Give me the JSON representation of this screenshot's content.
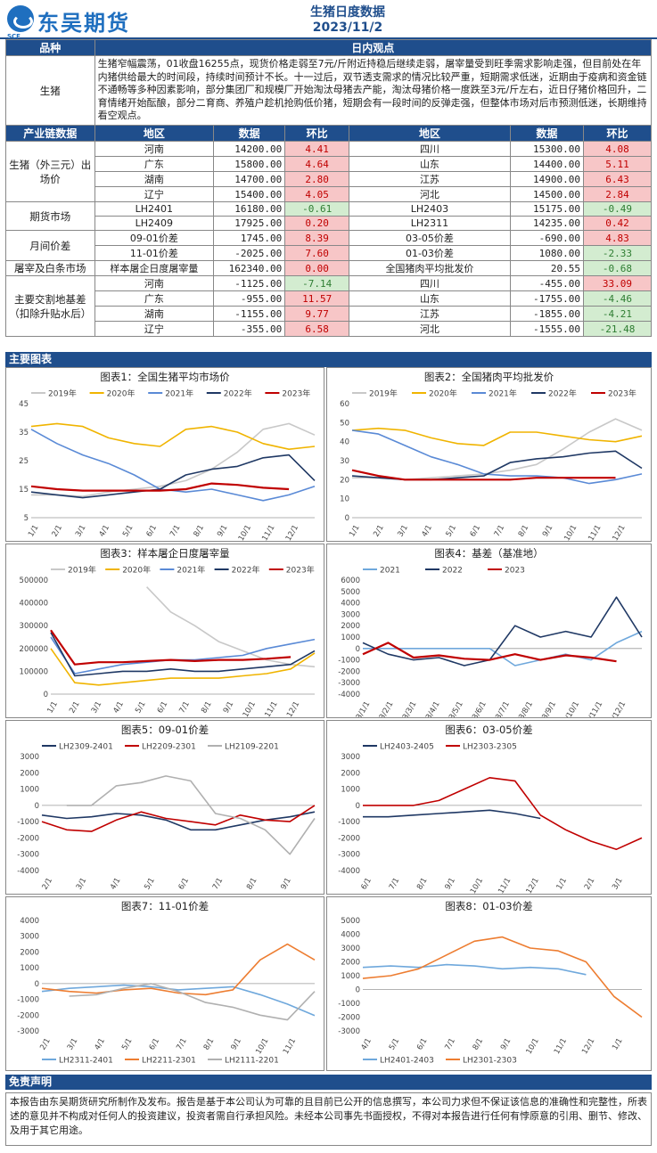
{
  "header": {
    "logo_cn": "东吴期货",
    "logo_en": "SCF",
    "title": "生猪日度数据",
    "date": "2023/11/2"
  },
  "section1": {
    "col_product": "品种",
    "col_view": "日内观点",
    "product": "生猪",
    "view_text": "生猪窄幅震荡，01收盘16255点，现货价格走弱至7元/斤附近持稳后继续走弱，屠宰量受到旺季需求影响走强，但目前处在年内猪供给最大的时间段，持续时间预计不长。十一过后，双节透支需求的情况比较严重，短期需求低迷，近期由于疫病和资金链不通畅等多种因素影响，部分集团厂和规模厂开始淘汰母猪去产能，淘汰母猪价格一度跌至3元/斤左右，近日仔猪价格回升，二育情绪开始酝酿，部分二育商、养殖户趁机抢购低价猪，短期会有一段时间的反弹走强，但整体市场对后市预测低迷，长期维持看空观点。"
  },
  "data_table": {
    "headers": [
      "产业链数据",
      "地区",
      "数据",
      "环比",
      "地区",
      "数据",
      "环比"
    ],
    "groups": [
      {
        "label": "生猪（外三元）出场价",
        "rows": [
          [
            "河南",
            "14200.00",
            "4.41",
            "四川",
            "15300.00",
            "4.08"
          ],
          [
            "广东",
            "15800.00",
            "4.64",
            "山东",
            "14400.00",
            "5.11"
          ],
          [
            "湖南",
            "14700.00",
            "2.80",
            "江苏",
            "14900.00",
            "6.43"
          ],
          [
            "辽宁",
            "15400.00",
            "4.05",
            "河北",
            "14500.00",
            "2.84"
          ]
        ]
      },
      {
        "label": "期货市场",
        "rows": [
          [
            "LH2401",
            "16180.00",
            "-0.61",
            "LH2403",
            "15175.00",
            "-0.49"
          ],
          [
            "LH2409",
            "17925.00",
            "0.20",
            "LH2311",
            "14235.00",
            "0.42"
          ]
        ]
      },
      {
        "label": "月间价差",
        "rows": [
          [
            "09-01价差",
            "1745.00",
            "8.39",
            "03-05价差",
            "-690.00",
            "4.83"
          ],
          [
            "11-01价差",
            "-2025.00",
            "7.60",
            "01-03价差",
            "1080.00",
            "-2.33"
          ]
        ]
      },
      {
        "label": "屠宰及白条市场",
        "rows": [
          [
            "样本屠企日度屠宰量",
            "162340.00",
            "0.00",
            "全国猪肉平均批发价",
            "20.55",
            "-0.68"
          ]
        ]
      },
      {
        "label": "主要交割地基差（扣除升贴水后）",
        "rows": [
          [
            "河南",
            "-1125.00",
            "-7.14",
            "四川",
            "-455.00",
            "33.09"
          ],
          [
            "广东",
            "-955.00",
            "11.57",
            "山东",
            "-1755.00",
            "-4.46"
          ],
          [
            "湖南",
            "-1155.00",
            "9.77",
            "江苏",
            "-1855.00",
            "-4.21"
          ],
          [
            "辽宁",
            "-355.00",
            "6.58",
            "河北",
            "-1555.00",
            "-21.48"
          ]
        ]
      }
    ]
  },
  "charts_section": {
    "title": "主要图表"
  },
  "colors": {
    "y2019": "#4472c4",
    "y2020": "#f0b400",
    "y2021": "#5a8ad6",
    "y2022": "#1f3864",
    "y2023": "#c00000",
    "grey": "#b0b0b0",
    "orange": "#ed7d31",
    "lightblue": "#6fa8dc"
  },
  "chart_data": [
    {
      "title": "图表1：全国生猪平均市场价",
      "type": "line",
      "ylim": [
        5,
        45
      ],
      "yticks": [
        5,
        15,
        25,
        35,
        45
      ],
      "xticks": [
        "1/1",
        "2/1",
        "3/1",
        "4/1",
        "5/1",
        "6/1",
        "7/1",
        "8/1",
        "9/1",
        "10/1",
        "11/1",
        "12/1"
      ],
      "series": [
        {
          "name": "2019年",
          "color": "#c8c8c8",
          "values": [
            13,
            13,
            12.5,
            14,
            15,
            16,
            18,
            22,
            28,
            36,
            38,
            34
          ]
        },
        {
          "name": "2020年",
          "color": "#f0b400",
          "values": [
            37,
            38,
            37,
            33,
            31,
            30,
            36,
            37,
            35,
            31,
            29,
            30
          ]
        },
        {
          "name": "2021年",
          "color": "#5a8ad6",
          "values": [
            36,
            31,
            27,
            24,
            20,
            15,
            14,
            15,
            13,
            11,
            13,
            16
          ]
        },
        {
          "name": "2022年",
          "color": "#1f3864",
          "values": [
            14,
            13,
            12,
            13,
            14,
            15,
            20,
            22,
            23,
            26,
            27,
            18
          ]
        },
        {
          "name": "2023年",
          "color": "#c00000",
          "values": [
            16,
            15,
            14.5,
            14.5,
            14.5,
            14.5,
            15,
            17,
            16.5,
            15.5,
            15
          ]
        }
      ]
    },
    {
      "title": "图表2：全国猪肉平均批发价",
      "type": "line",
      "ylim": [
        0,
        60
      ],
      "yticks": [
        0,
        10,
        20,
        30,
        40,
        50,
        60
      ],
      "xticks": [
        "1/1",
        "2/1",
        "3/1",
        "4/1",
        "5/1",
        "6/1",
        "7/1",
        "8/1",
        "9/1",
        "10/1",
        "11/1",
        "12/1"
      ],
      "series": [
        {
          "name": "2019年",
          "color": "#c8c8c8",
          "values": [
            21,
            21,
            20,
            21,
            22,
            23,
            25,
            28,
            36,
            45,
            52,
            46
          ]
        },
        {
          "name": "2020年",
          "color": "#f0b400",
          "values": [
            46,
            47,
            46,
            42,
            39,
            38,
            45,
            45,
            43,
            41,
            40,
            43
          ]
        },
        {
          "name": "2021年",
          "color": "#5a8ad6",
          "values": [
            46,
            44,
            38,
            32,
            28,
            23,
            22,
            22,
            21,
            18,
            20,
            23
          ]
        },
        {
          "name": "2022年",
          "color": "#1f3864",
          "values": [
            22,
            21,
            20,
            20,
            21,
            22,
            29,
            31,
            32,
            34,
            35,
            26
          ]
        },
        {
          "name": "2023年",
          "color": "#c00000",
          "values": [
            25,
            22,
            20,
            20,
            20,
            20,
            20,
            21,
            21,
            21,
            21
          ]
        }
      ]
    },
    {
      "title": "图表3：样本屠企日度屠宰量",
      "type": "line",
      "ylim": [
        0,
        500000
      ],
      "yticks": [
        0,
        100000,
        200000,
        300000,
        400000,
        500000
      ],
      "xticks": [
        "1/1",
        "2/1",
        "3/1",
        "4/1",
        "5/1",
        "6/1",
        "7/1",
        "8/1",
        "9/1",
        "10/1",
        "11/1",
        "12/1"
      ],
      "series": [
        {
          "name": "2019年",
          "color": "#c8c8c8",
          "values": [
            null,
            null,
            null,
            null,
            470000,
            360000,
            300000,
            230000,
            190000,
            150000,
            130000,
            120000
          ]
        },
        {
          "name": "2020年",
          "color": "#f0b400",
          "values": [
            200000,
            50000,
            40000,
            50000,
            60000,
            70000,
            70000,
            70000,
            80000,
            90000,
            110000,
            180000
          ]
        },
        {
          "name": "2021年",
          "color": "#5a8ad6",
          "values": [
            250000,
            90000,
            110000,
            130000,
            140000,
            150000,
            150000,
            160000,
            170000,
            200000,
            220000,
            240000
          ]
        },
        {
          "name": "2022年",
          "color": "#1f3864",
          "values": [
            270000,
            80000,
            90000,
            100000,
            100000,
            110000,
            100000,
            100000,
            110000,
            120000,
            130000,
            190000
          ]
        },
        {
          "name": "2023年",
          "color": "#c00000",
          "values": [
            280000,
            130000,
            140000,
            140000,
            145000,
            150000,
            145000,
            150000,
            150000,
            155000,
            162340
          ]
        }
      ]
    },
    {
      "title": "图表4：基差（基准地）",
      "type": "line",
      "ylim": [
        -4000,
        6000
      ],
      "yticks": [
        -4000,
        -3000,
        -2000,
        -1000,
        0,
        1000,
        2000,
        3000,
        4000,
        5000,
        6000
      ],
      "xticks": [
        "2023/1/1",
        "2023/2/1",
        "2023/3/1",
        "2023/4/1",
        "2023/5/1",
        "2023/6/1",
        "2023/7/1",
        "2023/8/1",
        "2023/9/1",
        "2023/10/1",
        "2023/11/1",
        "2023/12/1"
      ],
      "series": [
        {
          "name": "2021",
          "color": "#6fa8dc",
          "values": [
            0,
            0,
            0,
            0,
            0,
            0,
            -1500,
            -1000,
            -500,
            -1000,
            500,
            1500
          ]
        },
        {
          "name": "2022",
          "color": "#1f3864",
          "values": [
            500,
            -500,
            -1000,
            -800,
            -1500,
            -1000,
            2000,
            1000,
            1500,
            1000,
            4500,
            1000
          ]
        },
        {
          "name": "2023",
          "color": "#c00000",
          "values": [
            -500,
            500,
            -800,
            -600,
            -900,
            -1000,
            -500,
            -1000,
            -600,
            -800,
            -1125
          ]
        }
      ]
    },
    {
      "title": "图表5：09-01价差",
      "type": "line",
      "ylim": [
        -4000,
        3000
      ],
      "yticks": [
        -4000,
        -3000,
        -2000,
        -1000,
        0,
        1000,
        2000,
        3000
      ],
      "xticks": [
        "2/1",
        "3/1",
        "4/1",
        "5/1",
        "6/1",
        "7/1",
        "8/1",
        "9/1"
      ],
      "series": [
        {
          "name": "LH2309-2401",
          "color": "#1f3864",
          "values": [
            -600,
            -800,
            -700,
            -500,
            -600,
            -900,
            -1500,
            -1500,
            -1200,
            -900,
            -700,
            -400
          ]
        },
        {
          "name": "LH2209-2301",
          "color": "#c00000",
          "values": [
            -1000,
            -1500,
            -1600,
            -900,
            -400,
            -800,
            -1000,
            -1200,
            -600,
            -900,
            -1000,
            0
          ]
        },
        {
          "name": "LH2109-2201",
          "color": "#b0b0b0",
          "values": [
            null,
            0,
            0,
            1200,
            1400,
            1800,
            1500,
            -500,
            -800,
            -1500,
            -3000,
            -800
          ]
        }
      ]
    },
    {
      "title": "图表6：03-05价差",
      "type": "line",
      "ylim": [
        -4000,
        3000
      ],
      "yticks": [
        -4000,
        -3000,
        -2000,
        -1000,
        0,
        1000,
        2000,
        3000
      ],
      "xticks": [
        "6/1",
        "7/1",
        "8/1",
        "9/1",
        "10/1",
        "11/1",
        "12/1",
        "1/1",
        "2/1",
        "3/1"
      ],
      "series": [
        {
          "name": "LH2403-2405",
          "color": "#1f3864",
          "values": [
            -700,
            -700,
            -600,
            -500,
            -400,
            -300,
            -500,
            -800,
            null,
            null,
            null
          ]
        },
        {
          "name": "LH2303-2305",
          "color": "#c00000",
          "values": [
            0,
            0,
            0,
            300,
            1000,
            1700,
            1500,
            -600,
            -1500,
            -2200,
            -2700,
            -2000
          ]
        }
      ]
    },
    {
      "title": "图表7：11-01价差",
      "type": "line",
      "ylim": [
        -3000,
        4000
      ],
      "yticks": [
        -3000,
        -2000,
        -1000,
        0,
        1000,
        2000,
        3000,
        4000
      ],
      "xticks": [
        "2/1",
        "3/1",
        "4/1",
        "5/1",
        "6/1",
        "7/1",
        "8/1",
        "9/1",
        "10/1",
        "11/1"
      ],
      "series": [
        {
          "name": "LH2311-2401",
          "color": "#6fa8dc",
          "values": [
            -500,
            -300,
            -200,
            -100,
            -200,
            -400,
            -300,
            -200,
            -700,
            -1300,
            -2025
          ]
        },
        {
          "name": "LH2211-2301",
          "color": "#ed7d31",
          "values": [
            -300,
            -500,
            -600,
            -400,
            -300,
            -600,
            -700,
            -400,
            1500,
            2500,
            1500
          ]
        },
        {
          "name": "LH2111-2201",
          "color": "#b0b0b0",
          "values": [
            null,
            -800,
            -700,
            -300,
            0,
            -500,
            -1200,
            -1500,
            -2000,
            -2300,
            -500
          ]
        }
      ]
    },
    {
      "title": "图表8：01-03价差",
      "type": "line",
      "ylim": [
        -3000,
        5000
      ],
      "yticks": [
        -3000,
        -2000,
        -1000,
        0,
        1000,
        2000,
        3000,
        4000,
        5000
      ],
      "xticks": [
        "4/1",
        "5/1",
        "6/1",
        "7/1",
        "8/1",
        "9/1",
        "10/1",
        "11/1",
        "12/1",
        "1/1"
      ],
      "series": [
        {
          "name": "LH2401-2403",
          "color": "#6fa8dc",
          "values": [
            1600,
            1700,
            1600,
            1800,
            1700,
            1500,
            1600,
            1500,
            1080,
            null,
            null
          ]
        },
        {
          "name": "LH2301-2303",
          "color": "#ed7d31",
          "values": [
            800,
            1000,
            1500,
            2500,
            3500,
            3800,
            3000,
            2800,
            2000,
            -500,
            -2000
          ]
        }
      ]
    }
  ],
  "disclaimer": {
    "title": "免责声明",
    "text": "本报告由东吴期货研究所制作及发布。报告是基于本公司认为可靠的且目前已公开的信息撰写，本公司力求但不保证该信息的准确性和完整性，所表述的意见并不构成对任何人的投资建议，投资者需自行承担风险。未经本公司事先书面授权，不得对本报告进行任何有悖原意的引用、删节、修改、及用于其它用途。"
  }
}
